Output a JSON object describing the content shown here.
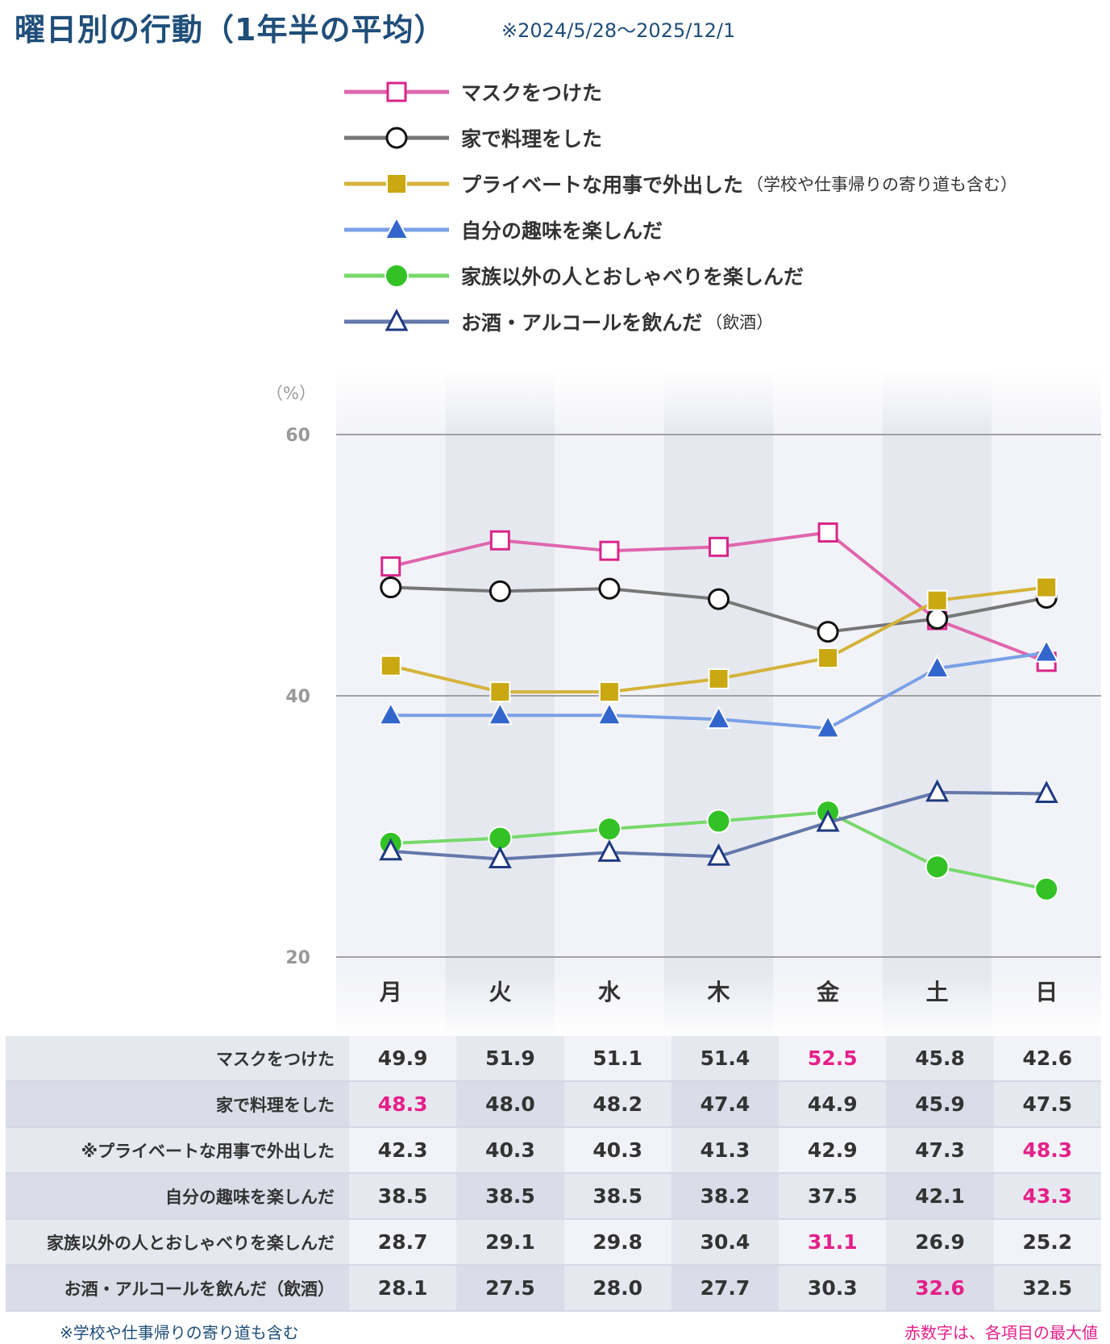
{
  "title": "曜日別の行動（1年半の平均）",
  "subtitle": "※2024/5/28〜2025/12/1",
  "legend": [
    {
      "label": "マスクをつけた",
      "note": "",
      "color": "#e066ad",
      "marker": "open-square",
      "marker_color": "#d9268a"
    },
    {
      "label": "家で料理をした",
      "note": "",
      "color": "#777777",
      "marker": "open-circle",
      "marker_color": "#111111"
    },
    {
      "label": "プライベートな用事で外出した",
      "note": "（学校や仕事帰りの寄り道も含む）",
      "color": "#d4b33a",
      "marker": "filled-square",
      "marker_color": "#c9a812"
    },
    {
      "label": "自分の趣味を楽しんだ",
      "note": "",
      "color": "#7aa0e6",
      "marker": "filled-triangle",
      "marker_color": "#3366cc"
    },
    {
      "label": "家族以外の人とおしゃべりを楽しんだ",
      "note": "",
      "color": "#77d96b",
      "marker": "filled-circle",
      "marker_color": "#33c226"
    },
    {
      "label": "お酒・アルコールを飲んだ",
      "note": "（飲酒）",
      "color": "#6478aa",
      "marker": "open-triangle",
      "marker_color": "#1f3a80"
    }
  ],
  "chart_data": {
    "type": "line",
    "ylabel": "（%）",
    "ylim": [
      20,
      60
    ],
    "yticks": [
      "20",
      "40",
      "60"
    ],
    "categories": [
      "月",
      "火",
      "水",
      "木",
      "金",
      "土",
      "日"
    ],
    "series": [
      {
        "name": "マスクをつけた",
        "values": [
          49.9,
          51.9,
          51.1,
          51.4,
          52.5,
          45.8,
          42.6
        ]
      },
      {
        "name": "家で料理をした",
        "values": [
          48.3,
          48.0,
          48.2,
          47.4,
          44.9,
          45.9,
          47.5
        ]
      },
      {
        "name": "プライベートな用事で外出した",
        "values": [
          42.3,
          40.3,
          40.3,
          41.3,
          42.9,
          47.3,
          48.3
        ]
      },
      {
        "name": "自分の趣味を楽しんだ",
        "values": [
          38.5,
          38.5,
          38.5,
          38.2,
          37.5,
          42.1,
          43.3
        ]
      },
      {
        "name": "家族以外の人とおしゃべりを楽しんだ",
        "values": [
          28.7,
          29.1,
          29.8,
          30.4,
          31.1,
          26.9,
          25.2
        ]
      },
      {
        "name": "お酒・アルコールを飲んだ（飲酒）",
        "values": [
          28.1,
          27.5,
          28.0,
          27.7,
          30.3,
          32.6,
          32.5
        ]
      }
    ],
    "highlight_color": "#e5208a"
  },
  "table": {
    "rows": [
      {
        "label": "マスクをつけた",
        "cells": [
          "49.9",
          "51.9",
          "51.1",
          "51.4",
          "52.5",
          "45.8",
          "42.6"
        ],
        "max_index": 4
      },
      {
        "label": "家で料理をした",
        "cells": [
          "48.3",
          "48.0",
          "48.2",
          "47.4",
          "44.9",
          "45.9",
          "47.5"
        ],
        "max_index": 0
      },
      {
        "label": "※プライベートな用事で外出した",
        "cells": [
          "42.3",
          "40.3",
          "40.3",
          "41.3",
          "42.9",
          "47.3",
          "48.3"
        ],
        "max_index": 6
      },
      {
        "label": "自分の趣味を楽しんだ",
        "cells": [
          "38.5",
          "38.5",
          "38.5",
          "38.2",
          "37.5",
          "42.1",
          "43.3"
        ],
        "max_index": 6
      },
      {
        "label": "家族以外の人とおしゃべりを楽しんだ",
        "cells": [
          "28.7",
          "29.1",
          "29.8",
          "30.4",
          "31.1",
          "26.9",
          "25.2"
        ],
        "max_index": 4
      },
      {
        "label": "お酒・アルコールを飲んだ（飲酒）",
        "cells": [
          "28.1",
          "27.5",
          "28.0",
          "27.7",
          "30.3",
          "32.6",
          "32.5"
        ],
        "max_index": 5
      }
    ]
  },
  "footnotes": {
    "left": "※学校や仕事帰りの寄り道も含む",
    "right": "赤数字は、各項目の最大値"
  }
}
